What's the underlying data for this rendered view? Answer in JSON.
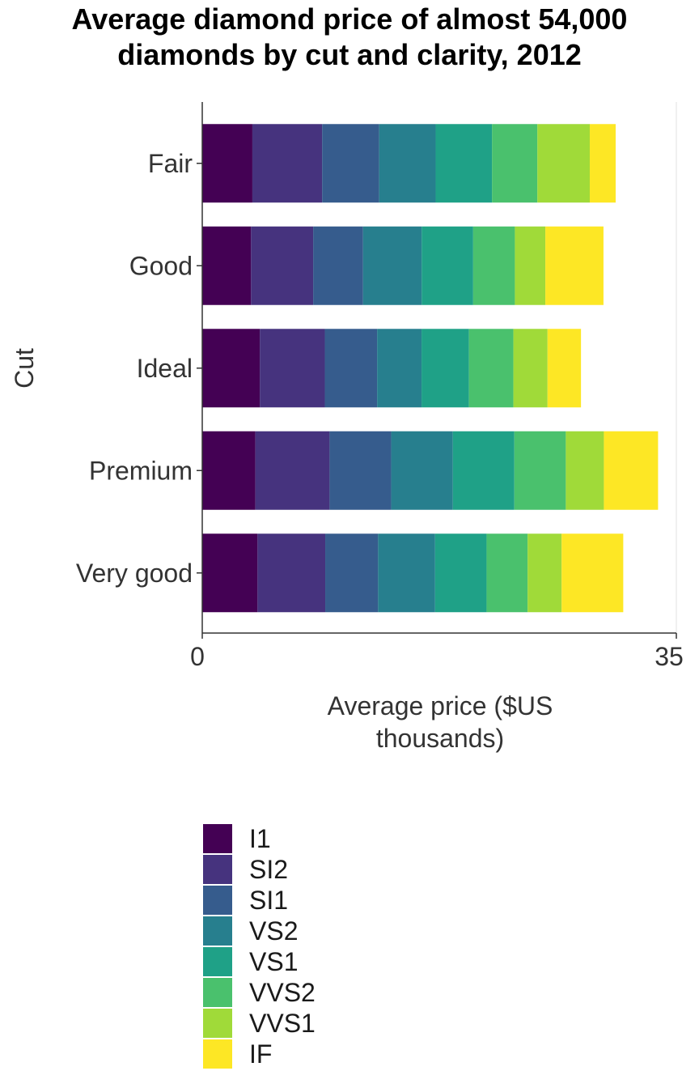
{
  "chart_data": {
    "type": "bar",
    "orientation": "horizontal",
    "stacked": true,
    "title_lines": [
      "Average diamond price of almost 54,000",
      "diamonds by cut and clarity, 2012"
    ],
    "xlabel_lines": [
      "Average price ($US",
      "thousands)"
    ],
    "ylabel": "Cut",
    "xlim": [
      0,
      35
    ],
    "x_ticks": [
      "0",
      "35"
    ],
    "categories": [
      "Fair",
      "Good",
      "Ideal",
      "Premium",
      "Very good"
    ],
    "series": [
      {
        "name": "I1",
        "color": "#440154",
        "values": [
          3.7,
          3.6,
          4.25,
          3.92,
          4.08
        ]
      },
      {
        "name": "SI2",
        "color": "#46337E",
        "values": [
          5.15,
          4.59,
          4.8,
          5.48,
          5.0
        ]
      },
      {
        "name": "SI1",
        "color": "#365C8D",
        "values": [
          4.21,
          3.68,
          3.86,
          4.55,
          3.9
        ]
      },
      {
        "name": "VS2",
        "color": "#277F8E",
        "values": [
          4.17,
          4.33,
          3.28,
          4.55,
          4.21
        ]
      },
      {
        "name": "VS1",
        "color": "#1FA187",
        "values": [
          4.16,
          3.8,
          3.5,
          4.54,
          3.8
        ]
      },
      {
        "name": "VVS2",
        "color": "#4AC16D",
        "values": [
          3.35,
          3.08,
          3.28,
          3.8,
          3.03
        ]
      },
      {
        "name": "VVS1",
        "color": "#A0DA39",
        "values": [
          3.87,
          2.25,
          2.52,
          2.81,
          2.51
        ]
      },
      {
        "name": "IF",
        "color": "#FDE725",
        "values": [
          1.91,
          4.29,
          2.47,
          4.0,
          4.55
        ]
      }
    ],
    "grid": false,
    "legend_position": "bottom"
  }
}
